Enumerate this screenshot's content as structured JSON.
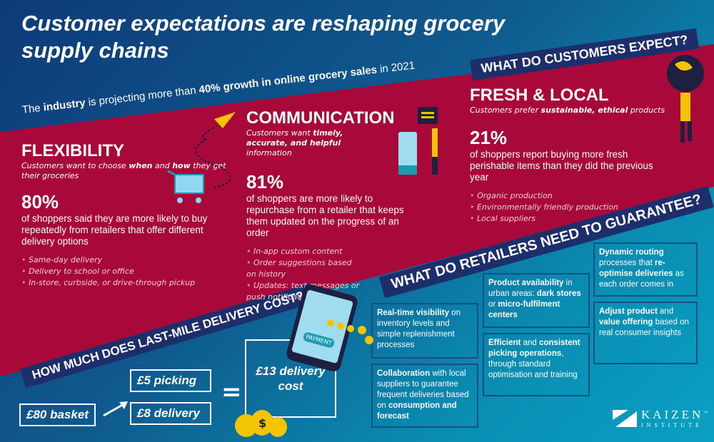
{
  "title": "Customer expectations are reshaping grocery supply chains",
  "subtitle": {
    "pre": "The ",
    "b1": "industry",
    "mid": " is projecting more than ",
    "b2": "40% growth in online grocery sales",
    "post": " in 2021"
  },
  "banners": {
    "customers": "WHAT DO CUSTOMERS EXPECT?",
    "retailers": "WHAT DO RETAILERS NEED TO GUARANTEE?",
    "cost": "HOW MUCH DOES LAST-MILE DELIVERY COST?"
  },
  "flexibility": {
    "title": "FLEXIBILITY",
    "tag_pre": "Customers want to choose ",
    "tag_b1": "when",
    "tag_mid": " and ",
    "tag_b2": "how",
    "tag_post": " they get their groceries",
    "pct": "80%",
    "desc": "of shoppers said they are more likely to buy repeatedly from retailers that offer different delivery options",
    "items": [
      "Same-day delivery",
      "Delivery to school or office",
      "In-store, curbside, or drive-through pickup"
    ]
  },
  "communication": {
    "title": "COMMUNICATION",
    "tag_pre": "Customers want ",
    "tag_b": "timely, accurate, and helpful",
    "tag_post": " information",
    "pct": "81%",
    "desc": "of shoppers are more likely to repurchase from a retailer that keeps them updated on the progress of an order",
    "items": [
      "In-app custom content",
      "Order suggestions based on history",
      "Updates: text messages or push notifications"
    ]
  },
  "fresh": {
    "title": "FRESH & LOCAL",
    "tag_pre": "Customers prefer ",
    "tag_b": "sustainable, ethical",
    "tag_post": " products",
    "pct": "21%",
    "desc": "of shoppers report buying more fresh perishable items than they did the previous year",
    "items": [
      "Organic production",
      "Environmentally friendly production",
      "Local suppliers"
    ]
  },
  "boxes": [
    {
      "b": "Real-time visibility",
      "t": " on inventory levels and simple replenishment processes"
    },
    {
      "b": "Collaboration",
      "t": " with local suppliers to guarantee frequent deliveries based on ",
      "b2": "consumption and forecast"
    },
    {
      "b": "Product availability",
      "t": " in urban areas: ",
      "b2": "dark stores",
      "t2": " or ",
      "b3": "micro-fulfilment centers"
    },
    {
      "b": "Efficient",
      "t": " and ",
      "b2": "consistent picking operations",
      "t2": ", through standard optimisation and training"
    },
    {
      "b": "Dynamic routing",
      "t": " processes that ",
      "b2": "re-optimise deliveries",
      "t2": " as each order comes in"
    },
    {
      "b": "Adjust product",
      "t": " and ",
      "b2": "value offering",
      "t2": " based on real consumer insights"
    }
  ],
  "cost": {
    "basket": "£80 basket",
    "picking": "£5 picking",
    "delivery": "£8 delivery",
    "equals": "=",
    "total": "£13 delivery cost",
    "payment": "PAYMENT"
  },
  "logo": {
    "name": "KAIZEN",
    "tm": "™",
    "sub": "INSTITUTE"
  }
}
